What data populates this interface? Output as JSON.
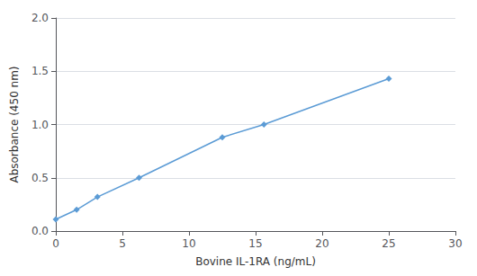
{
  "chart_data": {
    "type": "line",
    "x": [
      0.0,
      1.5625,
      3.125,
      6.25,
      12.5,
      15.625,
      25.0
    ],
    "values": [
      0.11,
      0.2,
      0.32,
      0.5,
      0.88,
      1.0,
      1.43
    ],
    "color": "#5B9BD5",
    "marker": "diamond",
    "xlabel": "Bovine IL-1RA (ng/mL)",
    "ylabel": "Absorbance (450 nm)",
    "xlim": [
      0,
      30
    ],
    "ylim": [
      0.0,
      2.0
    ],
    "xticks": [
      0,
      5,
      10,
      15,
      20,
      25,
      30
    ],
    "yticks": [
      {
        "value": 0.0,
        "label": "0.0"
      },
      0.5,
      {
        "value": 1.0,
        "label": "1.0"
      },
      1.5,
      {
        "value": 2.0,
        "label": "2.0"
      }
    ],
    "grid": "y"
  }
}
